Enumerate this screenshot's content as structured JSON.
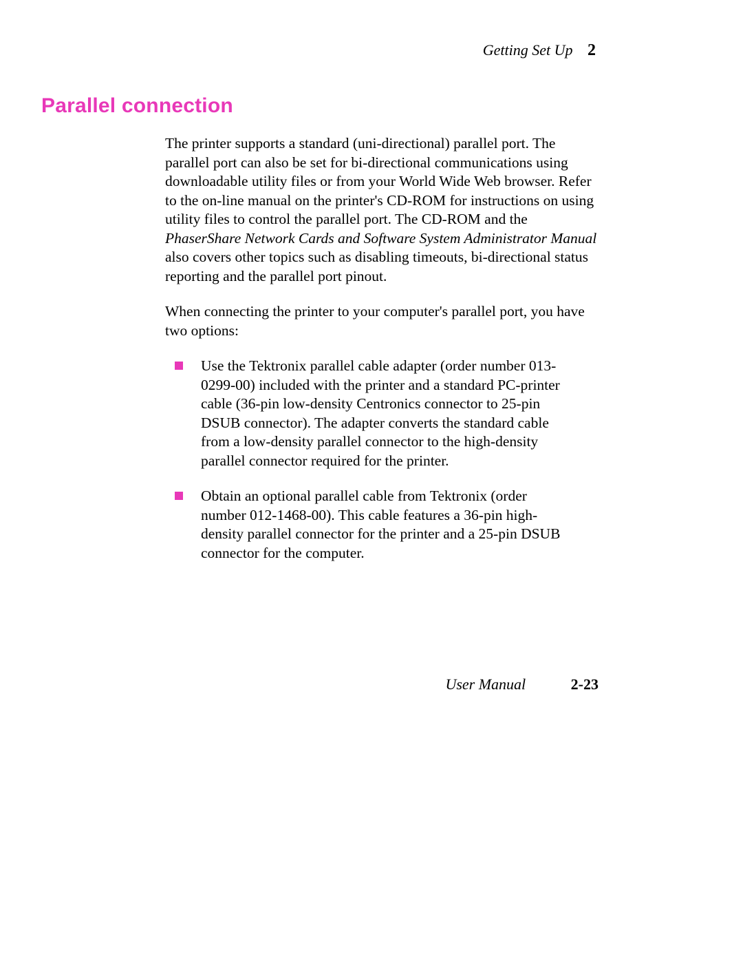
{
  "header": {
    "section_name": "Getting Set Up",
    "chapter_number": "2"
  },
  "title": "Parallel connection",
  "paragraphs": {
    "p1_part1": "The printer supports a standard (uni-directional) parallel port.  The parallel port can also be set for bi-directional communications using downloadable utility files or from your World Wide Web browser.  Refer to the on-line manual on the printer's CD-ROM for instructions on using utility files to control the parallel port.  The CD-ROM and the ",
    "p1_italic": "PhaserShare Network Cards and Software System Administrator Manual",
    "p1_part2": " also covers other topics such as disabling timeouts, bi-directional status reporting and the parallel port pinout.",
    "p2": "When connecting the printer to your computer's parallel port, you have two options:"
  },
  "bullets": [
    "Use the Tektronix parallel cable adapter (order number 013-0299-00) included with the printer and a standard PC-printer cable (36-pin low-density Centronics connector to 25-pin DSUB connector).  The adapter converts the standard cable from a low-density parallel connector to the high-density parallel connector required for the printer.",
    "Obtain an optional parallel cable from Tektronix (order number 012-1468-00).  This cable features a 36-pin high-density parallel connector for the printer and a 25-pin DSUB connector for the computer."
  ],
  "footer": {
    "manual_label": "User Manual",
    "page_number": "2-23"
  },
  "styling": {
    "title_color": "#e838b8",
    "bullet_color": "#e838b8",
    "text_color": "#000000",
    "background_color": "#ffffff",
    "title_font_family": "Arial, Helvetica, sans-serif",
    "body_font_family": "Palatino, serif",
    "title_fontsize": 30,
    "body_fontsize": 21.5,
    "header_fontsize": 22,
    "footer_fontsize": 22
  }
}
